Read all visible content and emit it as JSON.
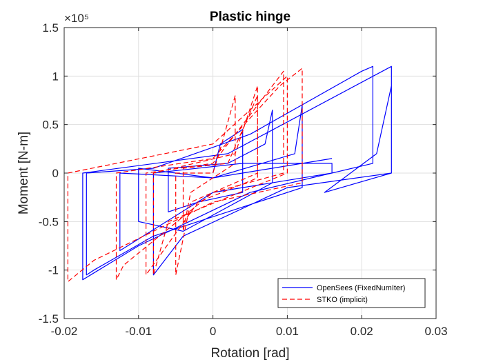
{
  "chart_data": {
    "type": "line",
    "title": "Plastic hinge",
    "xlabel": "Rotation [rad]",
    "ylabel": "Moment [N-m]",
    "y_exponent_label": "×10⁵",
    "xlim": [
      -0.02,
      0.03
    ],
    "ylim": [
      -1.5,
      1.5
    ],
    "xticks": [
      -0.02,
      -0.01,
      0,
      0.01,
      0.02,
      0.03
    ],
    "xtick_labels": [
      "-0.02",
      "-0.01",
      "0",
      "0.01",
      "0.02",
      "0.03"
    ],
    "yticks": [
      -1.5,
      -1,
      -0.5,
      0,
      0.5,
      1,
      1.5
    ],
    "ytick_labels": [
      "-1.5",
      "-1",
      "-0.5",
      "0",
      "0.5",
      "1",
      "1.5"
    ],
    "grid": true,
    "legend_position": "bottom-right",
    "series": [
      {
        "name": "OpenSees (FixedNumIter)",
        "color": "#0000ff",
        "style": "solid",
        "x": [
          0.0,
          0.001,
          0.004,
          0.004,
          -0.002,
          -0.006,
          -0.006,
          0.002,
          0.007,
          0.008,
          0.008,
          -0.004,
          -0.01,
          -0.01,
          0.0,
          0.011,
          0.012,
          0.012,
          -0.008,
          -0.016,
          -0.017,
          -0.017,
          -0.008,
          0.005,
          0.02,
          0.0215,
          0.0215,
          0.005,
          -0.01,
          -0.0175,
          -0.0175,
          0.002,
          0.024,
          0.024,
          0.015,
          0.022,
          0.024,
          0.024,
          0.01,
          -0.004,
          -0.008,
          -0.008,
          0.004,
          0.016,
          0.016,
          0.0,
          -0.0125,
          -0.0125,
          0.0,
          0.016
        ],
        "y": [
          0.0,
          0.3,
          0.45,
          -0.2,
          -0.3,
          -0.4,
          0.05,
          0.1,
          0.3,
          0.65,
          -0.1,
          -0.6,
          -0.5,
          0.05,
          -0.05,
          0.2,
          0.7,
          -0.15,
          -0.65,
          -1.0,
          -1.05,
          0.0,
          0.05,
          0.4,
          1.05,
          1.1,
          0.1,
          -0.2,
          -0.75,
          -1.1,
          0.0,
          0.2,
          1.1,
          0.0,
          -0.2,
          0.2,
          0.9,
          0.0,
          -0.15,
          -0.65,
          -1.05,
          0.0,
          0.1,
          0.1,
          0.0,
          -0.2,
          -0.8,
          0.0,
          -0.05,
          0.15
        ]
      },
      {
        "name": "STKO (implicit)",
        "color": "#ff0000",
        "style": "dashed",
        "x": [
          0.0,
          0.001,
          0.003,
          0.003,
          -0.003,
          -0.004,
          -0.004,
          0.002,
          0.006,
          0.006,
          -0.002,
          -0.009,
          -0.009,
          0.0,
          0.0095,
          0.0095,
          0.0,
          -0.012,
          -0.013,
          -0.013,
          0.0,
          0.009,
          0.012,
          0.012,
          0.0,
          -0.016,
          -0.0195,
          -0.0195,
          0.0,
          0.01,
          0.01,
          -0.006,
          -0.008,
          -0.008,
          0.003,
          0.006,
          0.006,
          -0.003,
          -0.005,
          -0.005,
          0.0
        ],
        "y": [
          0.0,
          0.25,
          0.8,
          0.1,
          -0.2,
          -0.6,
          0.05,
          0.1,
          0.8,
          -0.05,
          -0.3,
          -1.05,
          0.0,
          0.1,
          1.05,
          0.0,
          -0.2,
          -0.95,
          -1.1,
          0.0,
          0.15,
          0.9,
          1.08,
          -0.1,
          -0.3,
          -0.9,
          -1.12,
          0.0,
          0.3,
          1.0,
          0.0,
          -0.5,
          -1.05,
          0.0,
          0.2,
          0.9,
          0.0,
          -0.3,
          -1.05,
          0.0,
          0.0
        ]
      }
    ]
  }
}
